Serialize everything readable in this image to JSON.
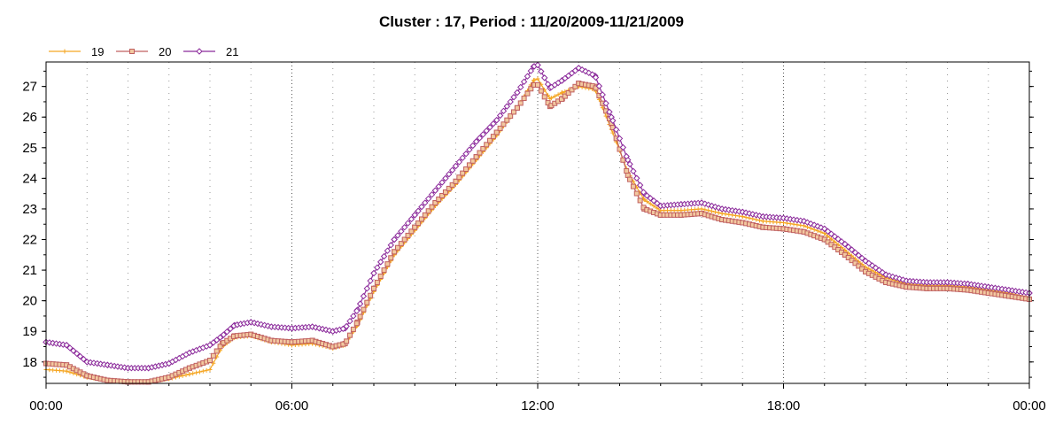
{
  "chart_data": {
    "type": "line",
    "title": "Cluster : 17, Period : 11/20/2009-11/21/2009",
    "xlabel": "",
    "ylabel": "",
    "xlim": [
      0,
      24
    ],
    "ylim": [
      17.3,
      27.8
    ],
    "x_ticks": [
      {
        "value": 0,
        "label": "00:00"
      },
      {
        "value": 6,
        "label": "06:00"
      },
      {
        "value": 12,
        "label": "12:00"
      },
      {
        "value": 18,
        "label": "18:00"
      },
      {
        "value": 24,
        "label": "00:00"
      }
    ],
    "y_ticks": [
      18,
      19,
      20,
      21,
      22,
      23,
      24,
      25,
      26,
      27
    ],
    "grid": true,
    "legend_position": "top-left",
    "series": [
      {
        "name": "19",
        "color": "#f5a623",
        "marker": "plus",
        "points": [
          [
            0,
            17.75
          ],
          [
            0.5,
            17.7
          ],
          [
            1,
            17.5
          ],
          [
            1.5,
            17.4
          ],
          [
            2,
            17.35
          ],
          [
            2.5,
            17.35
          ],
          [
            3,
            17.45
          ],
          [
            3.5,
            17.6
          ],
          [
            4,
            17.75
          ],
          [
            4.3,
            18.5
          ],
          [
            4.6,
            18.8
          ],
          [
            5,
            18.85
          ],
          [
            5.5,
            18.65
          ],
          [
            6,
            18.55
          ],
          [
            6.5,
            18.6
          ],
          [
            7,
            18.45
          ],
          [
            7.3,
            18.55
          ],
          [
            7.6,
            19.2
          ],
          [
            8,
            20.3
          ],
          [
            8.5,
            21.5
          ],
          [
            9,
            22.3
          ],
          [
            9.5,
            23.1
          ],
          [
            10,
            23.8
          ],
          [
            10.5,
            24.6
          ],
          [
            11,
            25.4
          ],
          [
            11.5,
            26.3
          ],
          [
            11.9,
            27.2
          ],
          [
            12,
            27.25
          ],
          [
            12.3,
            26.6
          ],
          [
            12.6,
            26.8
          ],
          [
            13,
            27.0
          ],
          [
            13.4,
            26.9
          ],
          [
            13.8,
            25.6
          ],
          [
            14.2,
            24.2
          ],
          [
            14.6,
            23.3
          ],
          [
            15,
            22.95
          ],
          [
            15.5,
            22.95
          ],
          [
            16,
            23.0
          ],
          [
            16.5,
            22.85
          ],
          [
            17,
            22.75
          ],
          [
            17.5,
            22.6
          ],
          [
            18,
            22.55
          ],
          [
            18.5,
            22.45
          ],
          [
            19,
            22.2
          ],
          [
            19.5,
            21.65
          ],
          [
            20,
            21.1
          ],
          [
            20.5,
            20.75
          ],
          [
            21,
            20.55
          ],
          [
            21.5,
            20.5
          ],
          [
            22,
            20.5
          ],
          [
            22.5,
            20.45
          ],
          [
            23,
            20.35
          ],
          [
            23.5,
            20.25
          ],
          [
            24,
            20.1
          ]
        ]
      },
      {
        "name": "20",
        "color": "#c06060",
        "marker": "square",
        "points": [
          [
            0,
            17.95
          ],
          [
            0.5,
            17.9
          ],
          [
            1,
            17.55
          ],
          [
            1.5,
            17.4
          ],
          [
            2,
            17.35
          ],
          [
            2.5,
            17.35
          ],
          [
            3,
            17.5
          ],
          [
            3.5,
            17.8
          ],
          [
            4,
            18.05
          ],
          [
            4.3,
            18.6
          ],
          [
            4.6,
            18.85
          ],
          [
            5,
            18.9
          ],
          [
            5.5,
            18.7
          ],
          [
            6,
            18.65
          ],
          [
            6.5,
            18.7
          ],
          [
            7,
            18.5
          ],
          [
            7.3,
            18.6
          ],
          [
            7.6,
            19.3
          ],
          [
            8,
            20.4
          ],
          [
            8.5,
            21.6
          ],
          [
            9,
            22.4
          ],
          [
            9.5,
            23.2
          ],
          [
            10,
            23.9
          ],
          [
            10.5,
            24.7
          ],
          [
            11,
            25.5
          ],
          [
            11.5,
            26.3
          ],
          [
            11.9,
            27.05
          ],
          [
            12,
            27.05
          ],
          [
            12.3,
            26.35
          ],
          [
            12.6,
            26.6
          ],
          [
            13,
            27.1
          ],
          [
            13.4,
            27.0
          ],
          [
            13.8,
            25.8
          ],
          [
            14.2,
            24.1
          ],
          [
            14.6,
            23.0
          ],
          [
            15,
            22.8
          ],
          [
            15.5,
            22.8
          ],
          [
            16,
            22.85
          ],
          [
            16.5,
            22.65
          ],
          [
            17,
            22.55
          ],
          [
            17.5,
            22.4
          ],
          [
            18,
            22.35
          ],
          [
            18.5,
            22.25
          ],
          [
            19,
            22.0
          ],
          [
            19.5,
            21.5
          ],
          [
            20,
            20.95
          ],
          [
            20.5,
            20.6
          ],
          [
            21,
            20.45
          ],
          [
            21.5,
            20.4
          ],
          [
            22,
            20.4
          ],
          [
            22.5,
            20.35
          ],
          [
            23,
            20.25
          ],
          [
            23.5,
            20.15
          ],
          [
            24,
            20.05
          ]
        ]
      },
      {
        "name": "21",
        "color": "#8b2a9b",
        "marker": "diamond",
        "points": [
          [
            0,
            18.65
          ],
          [
            0.5,
            18.55
          ],
          [
            1,
            18.0
          ],
          [
            1.5,
            17.9
          ],
          [
            2,
            17.8
          ],
          [
            2.5,
            17.8
          ],
          [
            3,
            17.95
          ],
          [
            3.5,
            18.3
          ],
          [
            4,
            18.55
          ],
          [
            4.3,
            18.85
          ],
          [
            4.6,
            19.2
          ],
          [
            5,
            19.3
          ],
          [
            5.5,
            19.15
          ],
          [
            6,
            19.1
          ],
          [
            6.5,
            19.15
          ],
          [
            7,
            19.0
          ],
          [
            7.3,
            19.1
          ],
          [
            7.6,
            19.7
          ],
          [
            8,
            20.9
          ],
          [
            8.5,
            22.0
          ],
          [
            9,
            22.8
          ],
          [
            9.5,
            23.6
          ],
          [
            10,
            24.4
          ],
          [
            10.5,
            25.2
          ],
          [
            11,
            25.9
          ],
          [
            11.5,
            26.8
          ],
          [
            11.9,
            27.65
          ],
          [
            12,
            27.7
          ],
          [
            12.3,
            26.95
          ],
          [
            12.6,
            27.2
          ],
          [
            13,
            27.6
          ],
          [
            13.4,
            27.35
          ],
          [
            13.8,
            26.0
          ],
          [
            14.2,
            24.6
          ],
          [
            14.6,
            23.5
          ],
          [
            15,
            23.1
          ],
          [
            15.5,
            23.15
          ],
          [
            16,
            23.2
          ],
          [
            16.5,
            23.0
          ],
          [
            17,
            22.9
          ],
          [
            17.5,
            22.75
          ],
          [
            18,
            22.7
          ],
          [
            18.5,
            22.6
          ],
          [
            19,
            22.35
          ],
          [
            19.5,
            21.85
          ],
          [
            20,
            21.3
          ],
          [
            20.5,
            20.85
          ],
          [
            21,
            20.65
          ],
          [
            21.5,
            20.6
          ],
          [
            22,
            20.6
          ],
          [
            22.5,
            20.55
          ],
          [
            23,
            20.45
          ],
          [
            23.5,
            20.35
          ],
          [
            24,
            20.25
          ]
        ]
      }
    ]
  }
}
